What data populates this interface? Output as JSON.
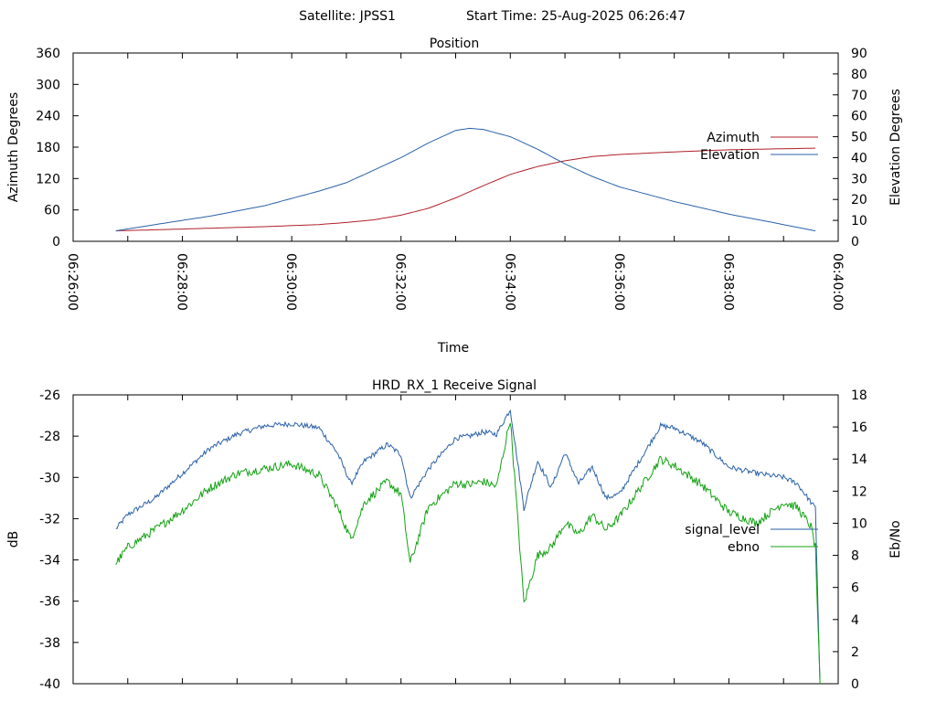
{
  "header": {
    "satellite": "Satellite: JPSS1",
    "start_time": "Start Time: 25-Aug-2025 06:26:47"
  },
  "chart_data": [
    {
      "type": "line",
      "title": "Position",
      "xlabel": "Time",
      "ylabel": "Azimuth Degrees",
      "y2label": "Elevation Degrees",
      "xlim": [
        "06:26:00",
        "06:40:00"
      ],
      "x_ticks": [
        "06:26:00",
        "06:28:00",
        "06:30:00",
        "06:32:00",
        "06:34:00",
        "06:36:00",
        "06:38:00",
        "06:40:00"
      ],
      "ylim": [
        0,
        360
      ],
      "y_ticks": [
        "0",
        "60",
        "120",
        "180",
        "240",
        "300",
        "360"
      ],
      "y2lim": [
        0,
        90
      ],
      "y2_ticks": [
        "0",
        "10",
        "20",
        "30",
        "40",
        "50",
        "60",
        "70",
        "80",
        "90"
      ],
      "legend_position": "right",
      "grid": false,
      "series": [
        {
          "name": "Azimuth",
          "axis": "y",
          "color": "#b0202a",
          "x": [
            "06:26:47",
            "06:27:30",
            "06:28:30",
            "06:29:30",
            "06:30:30",
            "06:31:00",
            "06:31:30",
            "06:32:00",
            "06:32:30",
            "06:33:00",
            "06:33:30",
            "06:34:00",
            "06:34:30",
            "06:35:00",
            "06:35:30",
            "06:36:00",
            "06:37:00",
            "06:38:00",
            "06:39:00",
            "06:39:35"
          ],
          "values": [
            20,
            22,
            25,
            28,
            32,
            36,
            41,
            50,
            63,
            83,
            106,
            128,
            143,
            154,
            162,
            166,
            171,
            175,
            177,
            178
          ]
        },
        {
          "name": "Elevation",
          "axis": "y2",
          "color": "#2b62a8",
          "x": [
            "06:26:47",
            "06:27:30",
            "06:28:30",
            "06:29:30",
            "06:30:30",
            "06:31:00",
            "06:31:30",
            "06:32:00",
            "06:32:30",
            "06:33:00",
            "06:33:15",
            "06:33:30",
            "06:34:00",
            "06:34:30",
            "06:35:00",
            "06:35:30",
            "06:36:00",
            "06:37:00",
            "06:38:00",
            "06:39:00",
            "06:39:35"
          ],
          "values": [
            5,
            8,
            12,
            17,
            24,
            28,
            34,
            40,
            47,
            53,
            54,
            53.5,
            50,
            44,
            37,
            31,
            26,
            19,
            13,
            8,
            5
          ]
        }
      ]
    },
    {
      "type": "line",
      "title": "HRD_RX_1 Receive Signal",
      "xlabel": "",
      "ylabel": "dB",
      "y2label": "Eb/No",
      "ylim": [
        -40,
        -26
      ],
      "y_ticks": [
        "-26",
        "-28",
        "-30",
        "-32",
        "-34",
        "-36",
        "-38",
        "-40"
      ],
      "y2lim": [
        0,
        18
      ],
      "y2_ticks": [
        "0",
        "2",
        "4",
        "6",
        "8",
        "10",
        "12",
        "14",
        "16",
        "18"
      ],
      "legend_position": "right",
      "grid": false,
      "series": [
        {
          "name": "signal_level",
          "axis": "y",
          "color": "#2b62a8",
          "x": [
            "06:26:47",
            "06:27:00",
            "06:27:30",
            "06:28:00",
            "06:28:30",
            "06:29:00",
            "06:29:30",
            "06:30:00",
            "06:30:30",
            "06:30:50",
            "06:31:05",
            "06:31:20",
            "06:31:45",
            "06:32:00",
            "06:32:10",
            "06:32:30",
            "06:33:00",
            "06:33:15",
            "06:33:30",
            "06:33:45",
            "06:34:00",
            "06:34:15",
            "06:34:30",
            "06:34:45",
            "06:35:00",
            "06:35:15",
            "06:35:30",
            "06:35:45",
            "06:36:00",
            "06:36:30",
            "06:36:45",
            "06:37:00",
            "06:37:30",
            "06:38:00",
            "06:38:30",
            "06:39:00",
            "06:39:15",
            "06:39:30",
            "06:39:35",
            "06:39:40"
          ],
          "values": [
            -32.5,
            -31.8,
            -31.0,
            -29.8,
            -28.6,
            -27.9,
            -27.5,
            -27.4,
            -27.6,
            -28.8,
            -30.3,
            -29.2,
            -28.4,
            -28.9,
            -31.0,
            -29.6,
            -28.1,
            -28.0,
            -27.8,
            -27.9,
            -26.7,
            -31.5,
            -29.2,
            -30.5,
            -28.8,
            -30.3,
            -29.5,
            -31.0,
            -30.8,
            -28.6,
            -27.5,
            -27.6,
            -28.3,
            -29.5,
            -29.8,
            -30.0,
            -30.3,
            -31.2,
            -31.5,
            -40.0
          ]
        },
        {
          "name": "ebno",
          "axis": "y2",
          "color": "#12a312",
          "x": [
            "06:26:47",
            "06:27:00",
            "06:27:30",
            "06:28:00",
            "06:28:30",
            "06:29:00",
            "06:29:30",
            "06:30:00",
            "06:30:30",
            "06:30:50",
            "06:31:05",
            "06:31:20",
            "06:31:45",
            "06:32:00",
            "06:32:10",
            "06:32:30",
            "06:33:00",
            "06:33:15",
            "06:33:30",
            "06:33:45",
            "06:34:00",
            "06:34:15",
            "06:34:30",
            "06:34:45",
            "06:35:00",
            "06:35:15",
            "06:35:30",
            "06:35:45",
            "06:36:00",
            "06:36:30",
            "06:36:45",
            "06:37:00",
            "06:37:30",
            "06:38:00",
            "06:38:30",
            "06:39:00",
            "06:39:15",
            "06:39:30",
            "06:39:35",
            "06:39:40"
          ],
          "values": [
            7.5,
            8.5,
            9.6,
            10.8,
            12.2,
            13.1,
            13.4,
            13.7,
            13.0,
            11.0,
            9.0,
            11.3,
            12.6,
            11.8,
            7.5,
            11.0,
            12.5,
            12.4,
            12.6,
            12.3,
            16.5,
            5.0,
            8.0,
            8.5,
            10.0,
            9.3,
            10.5,
            9.6,
            10.4,
            12.8,
            14.0,
            13.6,
            12.4,
            10.7,
            10.0,
            11.3,
            11.0,
            9.8,
            8.5,
            0.0
          ]
        }
      ]
    }
  ]
}
